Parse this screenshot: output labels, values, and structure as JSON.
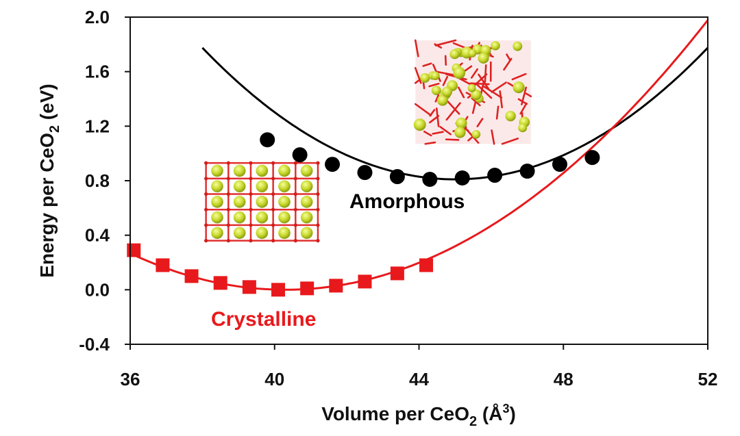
{
  "chart_data": {
    "type": "scatter",
    "xlabel": "Volume per CeO₂ (Å³)",
    "ylabel": "Energy per CeO₂ (eV)",
    "xlim": [
      36,
      52
    ],
    "ylim": [
      -0.4,
      2.0
    ],
    "xticks": [
      "36",
      "40",
      "44",
      "48",
      "52"
    ],
    "yticks": [
      "-0.4",
      "0.0",
      "0.4",
      "0.8",
      "1.2",
      "1.6",
      "2.0"
    ],
    "grid": false,
    "series": [
      {
        "name": "Amorphous",
        "color": "#000000",
        "marker": "circle",
        "x": [
          39.8,
          40.7,
          41.6,
          42.5,
          43.4,
          44.3,
          45.2,
          46.1,
          47.0,
          47.9,
          48.8
        ],
        "y": [
          1.1,
          0.99,
          0.92,
          0.86,
          0.83,
          0.81,
          0.82,
          0.84,
          0.87,
          0.92,
          0.97
        ],
        "fit": {
          "kind": "quadratic",
          "x0": 45.0,
          "y0": 0.81,
          "a": 0.0197,
          "xrange": [
            38.0,
            52.0
          ]
        }
      },
      {
        "name": "Crystalline",
        "color": "#e8191c",
        "marker": "square",
        "x": [
          36.1,
          36.9,
          37.7,
          38.5,
          39.3,
          40.1,
          40.9,
          41.7,
          42.5,
          43.4,
          44.2
        ],
        "y": [
          0.29,
          0.18,
          0.1,
          0.05,
          0.02,
          0.0,
          0.01,
          0.03,
          0.06,
          0.12,
          0.18
        ],
        "fit": {
          "kind": "quadratic",
          "x0": 40.3,
          "y0": 0.0,
          "a": 0.01445,
          "xrange": [
            36.0,
            52.0
          ]
        }
      }
    ],
    "insets": [
      {
        "name": "crystalline-structure",
        "lattice": "ordered",
        "x": [
          38.1,
          41.2
        ],
        "y": [
          0.93,
          0.36
        ]
      },
      {
        "name": "amorphous-structure",
        "lattice": "disordered",
        "x": [
          43.9,
          47.1
        ],
        "y": [
          1.83,
          1.07
        ]
      }
    ]
  }
}
